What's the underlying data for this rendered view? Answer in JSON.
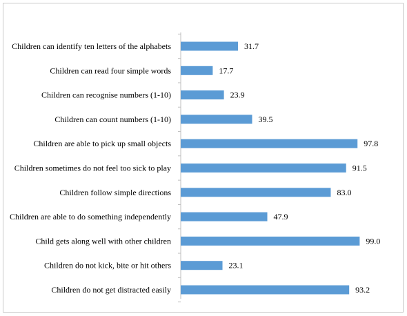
{
  "chart_data": {
    "type": "bar",
    "orientation": "horizontal",
    "categories": [
      "Children can identify ten letters of the alphabets",
      "Children can read four simple words",
      "Children can recognise numbers (1-10)",
      "Children can count numbers (1-10)",
      "Children are able to pick up small objects",
      "Children sometimes do not feel too sick to play",
      "Children follow simple directions",
      "Children are able to do something independently",
      "Child gets along well with other children",
      "Children do not kick, bite or hit others",
      "Children do not get distracted easily"
    ],
    "values": [
      31.7,
      17.7,
      23.9,
      39.5,
      97.8,
      91.5,
      83.0,
      47.9,
      99.0,
      23.1,
      93.2
    ],
    "value_labels": [
      "31.7",
      "17.7",
      "23.9",
      "39.5",
      "97.8",
      "91.5",
      "83.0",
      "47.9",
      "99.0",
      "23.1",
      "93.2"
    ],
    "xlim": [
      0,
      100
    ],
    "grid": false,
    "bar_color": "#5b9bd5",
    "axis_color": "#bfbfbf"
  }
}
